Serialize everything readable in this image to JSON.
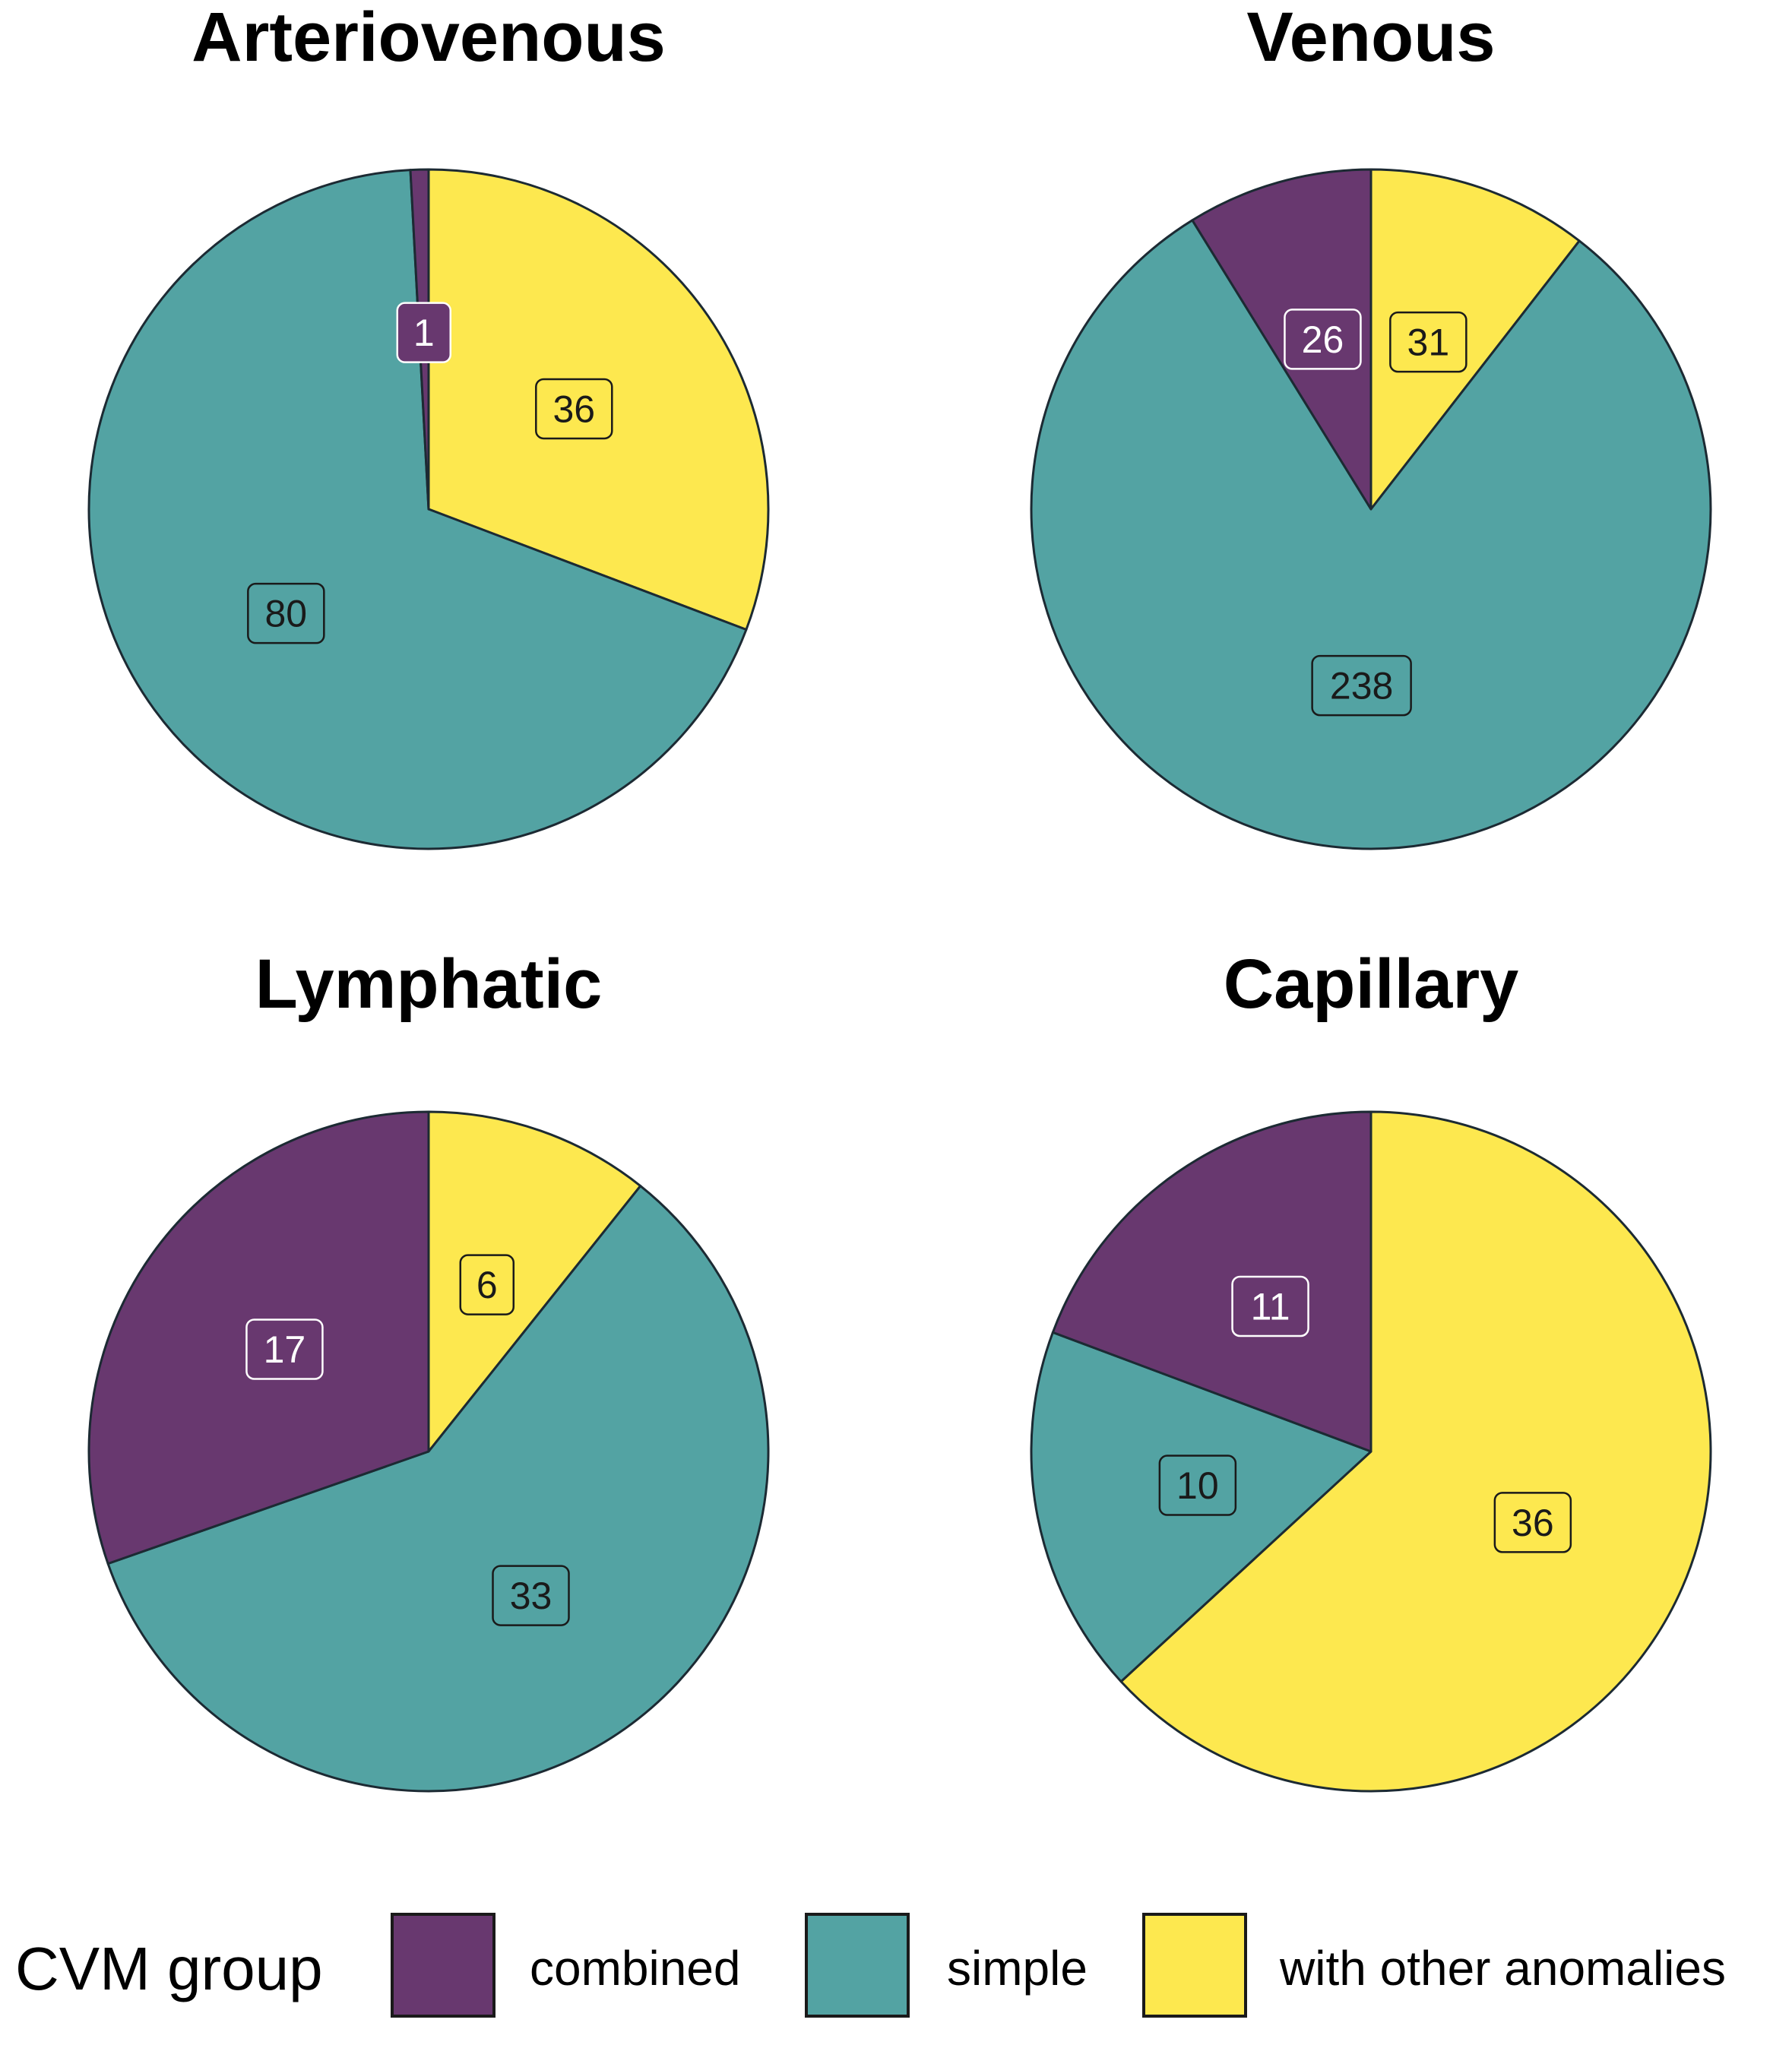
{
  "chart_data": [
    {
      "type": "pie",
      "title": "Arteriovenous",
      "slices": [
        {
          "group": "with other anomalies",
          "value": 36
        },
        {
          "group": "simple",
          "value": 80
        },
        {
          "group": "combined",
          "value": 1
        }
      ]
    },
    {
      "type": "pie",
      "title": "Venous",
      "slices": [
        {
          "group": "with other anomalies",
          "value": 31
        },
        {
          "group": "simple",
          "value": 238
        },
        {
          "group": "combined",
          "value": 26
        }
      ]
    },
    {
      "type": "pie",
      "title": "Lymphatic",
      "slices": [
        {
          "group": "with other anomalies",
          "value": 6
        },
        {
          "group": "simple",
          "value": 33
        },
        {
          "group": "combined",
          "value": 17
        }
      ]
    },
    {
      "type": "pie",
      "title": "Capillary",
      "slices": [
        {
          "group": "with other anomalies",
          "value": 36
        },
        {
          "group": "simple",
          "value": 10
        },
        {
          "group": "combined",
          "value": 11
        }
      ]
    }
  ],
  "legend": {
    "title": "CVM group",
    "items": [
      {
        "key": "combined",
        "label": "combined",
        "color": "#68386f"
      },
      {
        "key": "simple",
        "label": "simple",
        "color": "#53a3a3"
      },
      {
        "key": "with other anomalies",
        "label": "with other anomalies",
        "color": "#fde84f"
      }
    ]
  },
  "colors": {
    "slice_border": "#1c2a33",
    "label_dark_text": "#1a1a1a",
    "label_light_text": "#ffffff"
  }
}
